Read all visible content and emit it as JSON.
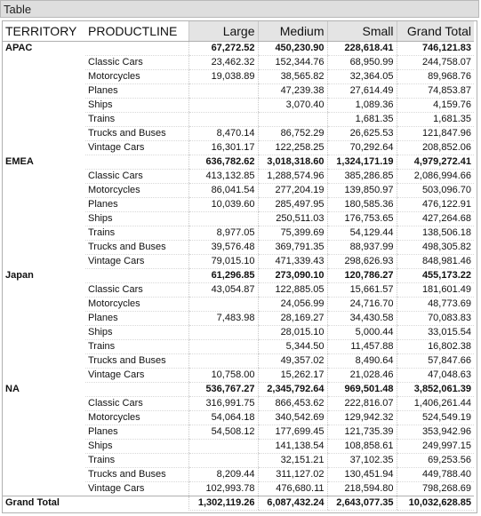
{
  "title": "Table",
  "table": {
    "headers": [
      "TERRITORY",
      "PRODUCTLINE",
      "Large",
      "Medium",
      "Small",
      "Grand Total"
    ],
    "groups": [
      {
        "territory": "APAC",
        "totals": [
          "67,272.52",
          "450,230.90",
          "228,618.41",
          "746,121.83"
        ],
        "rows": [
          {
            "product": "Classic Cars",
            "values": [
              "23,462.32",
              "152,344.76",
              "68,950.99",
              "244,758.07"
            ]
          },
          {
            "product": "Motorcycles",
            "values": [
              "19,038.89",
              "38,565.82",
              "32,364.05",
              "89,968.76"
            ]
          },
          {
            "product": "Planes",
            "values": [
              null,
              "47,239.38",
              "27,614.49",
              "74,853.87"
            ]
          },
          {
            "product": "Ships",
            "values": [
              null,
              "3,070.40",
              "1,089.36",
              "4,159.76"
            ]
          },
          {
            "product": "Trains",
            "values": [
              null,
              null,
              "1,681.35",
              "1,681.35"
            ]
          },
          {
            "product": "Trucks and Buses",
            "values": [
              "8,470.14",
              "86,752.29",
              "26,625.53",
              "121,847.96"
            ]
          },
          {
            "product": "Vintage Cars",
            "values": [
              "16,301.17",
              "122,258.25",
              "70,292.64",
              "208,852.06"
            ]
          }
        ]
      },
      {
        "territory": "EMEA",
        "totals": [
          "636,782.62",
          "3,018,318.60",
          "1,324,171.19",
          "4,979,272.41"
        ],
        "rows": [
          {
            "product": "Classic Cars",
            "values": [
              "413,132.85",
              "1,288,574.96",
              "385,286.85",
              "2,086,994.66"
            ]
          },
          {
            "product": "Motorcycles",
            "values": [
              "86,041.54",
              "277,204.19",
              "139,850.97",
              "503,096.70"
            ]
          },
          {
            "product": "Planes",
            "values": [
              "10,039.60",
              "285,497.95",
              "180,585.36",
              "476,122.91"
            ]
          },
          {
            "product": "Ships",
            "values": [
              null,
              "250,511.03",
              "176,753.65",
              "427,264.68"
            ]
          },
          {
            "product": "Trains",
            "values": [
              "8,977.05",
              "75,399.69",
              "54,129.44",
              "138,506.18"
            ]
          },
          {
            "product": "Trucks and Buses",
            "values": [
              "39,576.48",
              "369,791.35",
              "88,937.99",
              "498,305.82"
            ]
          },
          {
            "product": "Vintage Cars",
            "values": [
              "79,015.10",
              "471,339.43",
              "298,626.93",
              "848,981.46"
            ]
          }
        ]
      },
      {
        "territory": "Japan",
        "totals": [
          "61,296.85",
          "273,090.10",
          "120,786.27",
          "455,173.22"
        ],
        "rows": [
          {
            "product": "Classic Cars",
            "values": [
              "43,054.87",
              "122,885.05",
              "15,661.57",
              "181,601.49"
            ]
          },
          {
            "product": "Motorcycles",
            "values": [
              null,
              "24,056.99",
              "24,716.70",
              "48,773.69"
            ]
          },
          {
            "product": "Planes",
            "values": [
              "7,483.98",
              "28,169.27",
              "34,430.58",
              "70,083.83"
            ]
          },
          {
            "product": "Ships",
            "values": [
              null,
              "28,015.10",
              "5,000.44",
              "33,015.54"
            ]
          },
          {
            "product": "Trains",
            "values": [
              null,
              "5,344.50",
              "11,457.88",
              "16,802.38"
            ]
          },
          {
            "product": "Trucks and Buses",
            "values": [
              null,
              "49,357.02",
              "8,490.64",
              "57,847.66"
            ]
          },
          {
            "product": "Vintage Cars",
            "values": [
              "10,758.00",
              "15,262.17",
              "21,028.46",
              "47,048.63"
            ]
          }
        ]
      },
      {
        "territory": "NA",
        "totals": [
          "536,767.27",
          "2,345,792.64",
          "969,501.48",
          "3,852,061.39"
        ],
        "rows": [
          {
            "product": "Classic Cars",
            "values": [
              "316,991.75",
              "866,453.62",
              "222,816.07",
              "1,406,261.44"
            ]
          },
          {
            "product": "Motorcycles",
            "values": [
              "54,064.18",
              "340,542.69",
              "129,942.32",
              "524,549.19"
            ]
          },
          {
            "product": "Planes",
            "values": [
              "54,508.12",
              "177,699.45",
              "121,735.39",
              "353,942.96"
            ]
          },
          {
            "product": "Ships",
            "values": [
              null,
              "141,138.54",
              "108,858.61",
              "249,997.15"
            ]
          },
          {
            "product": "Trains",
            "values": [
              null,
              "32,151.21",
              "37,102.35",
              "69,253.56"
            ]
          },
          {
            "product": "Trucks and Buses",
            "values": [
              "8,209.44",
              "311,127.02",
              "130,451.94",
              "449,788.40"
            ]
          },
          {
            "product": "Vintage Cars",
            "values": [
              "102,993.78",
              "476,680.11",
              "218,594.80",
              "798,268.69"
            ]
          }
        ]
      }
    ],
    "grand_total": {
      "label": "Grand Total",
      "values": [
        "1,302,119.26",
        "6,087,432.24",
        "2,643,077.35",
        "10,032,628.85"
      ]
    }
  }
}
